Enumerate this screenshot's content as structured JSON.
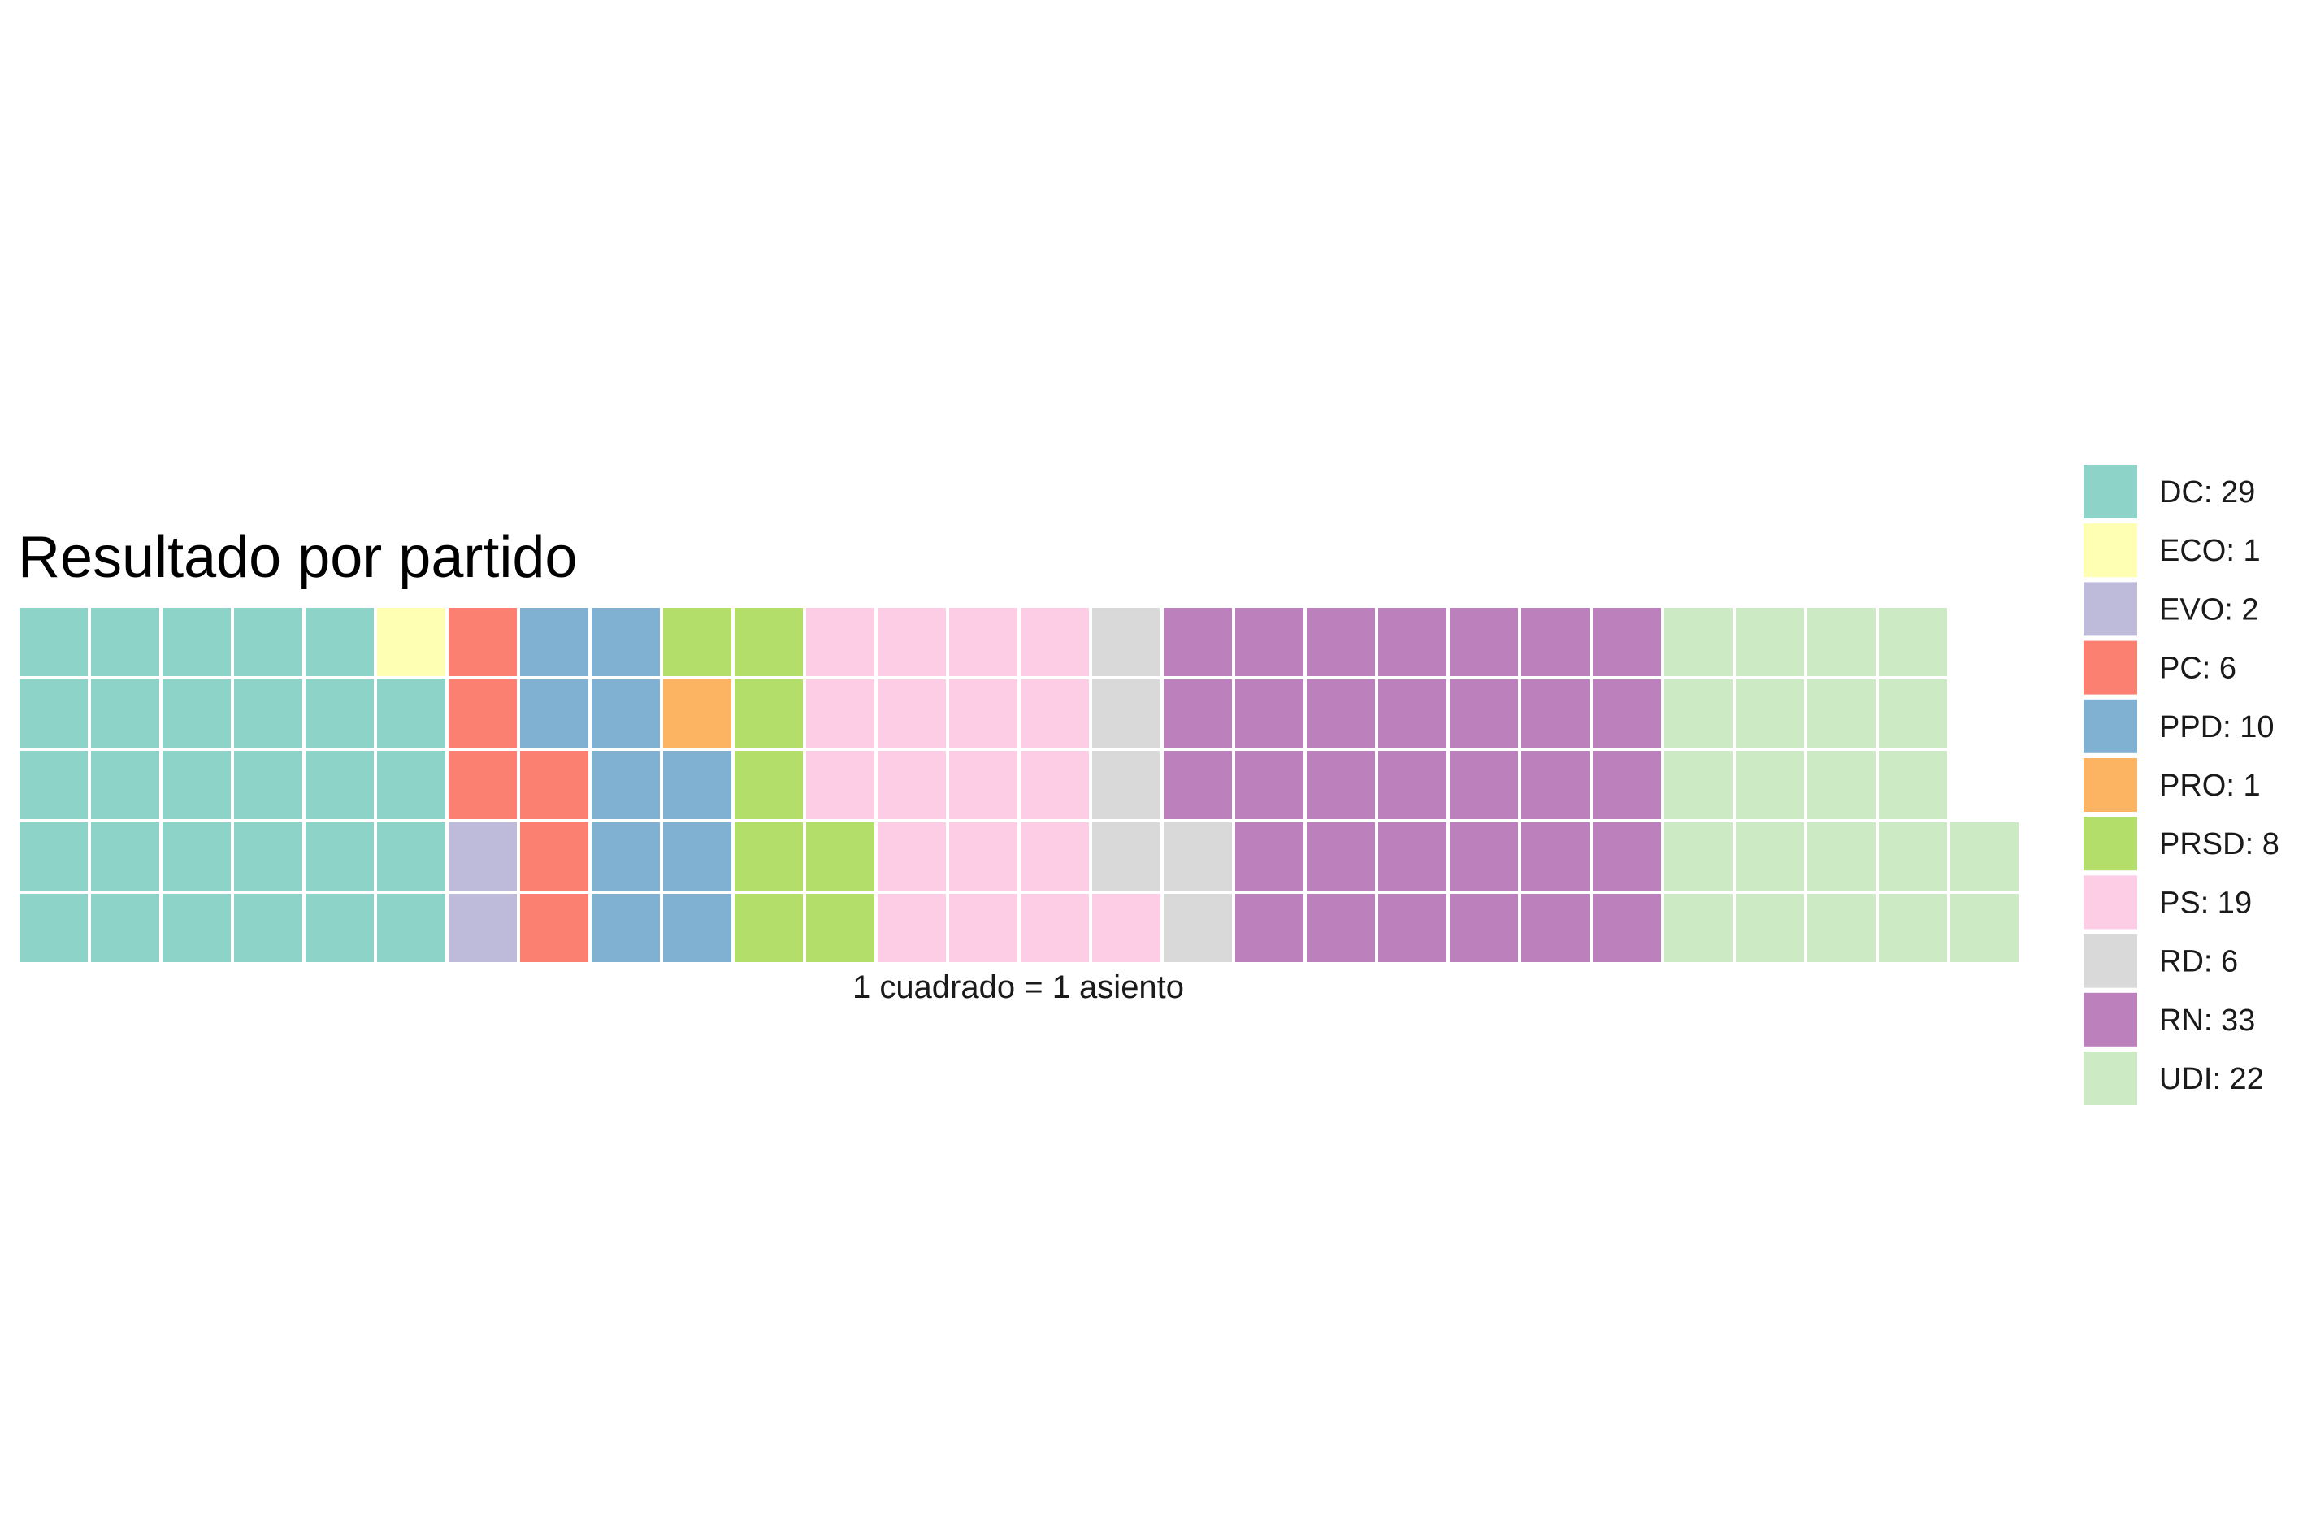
{
  "chart_data": {
    "type": "waffle",
    "title": "Resultado por partido",
    "caption": "1 cuadrado = 1 asiento",
    "rows": 5,
    "legend_position": "right",
    "series": [
      {
        "name": "DC",
        "value": 29,
        "color": "#8DD3C7",
        "legend_label": "DC: 29"
      },
      {
        "name": "ECO",
        "value": 1,
        "color": "#FFFFB3",
        "legend_label": "ECO: 1"
      },
      {
        "name": "EVO",
        "value": 2,
        "color": "#BEBADA",
        "legend_label": "EVO: 2"
      },
      {
        "name": "PC",
        "value": 6,
        "color": "#FB8072",
        "legend_label": "PC: 6"
      },
      {
        "name": "PPD",
        "value": 10,
        "color": "#80B1D3",
        "legend_label": "PPD: 10"
      },
      {
        "name": "PRO",
        "value": 1,
        "color": "#FDB462",
        "legend_label": "PRO: 1"
      },
      {
        "name": "PRSD",
        "value": 8,
        "color": "#B3DE69",
        "legend_label": "PRSD: 8"
      },
      {
        "name": "PS",
        "value": 19,
        "color": "#FCCDE5",
        "legend_label": "PS: 19"
      },
      {
        "name": "RD",
        "value": 6,
        "color": "#D9D9D9",
        "legend_label": "RD: 6"
      },
      {
        "name": "RN",
        "value": 33,
        "color": "#BC80BD",
        "legend_label": "RN: 33"
      },
      {
        "name": "UDI",
        "value": 22,
        "color": "#CCEBC5",
        "legend_label": "UDI: 22"
      }
    ]
  }
}
